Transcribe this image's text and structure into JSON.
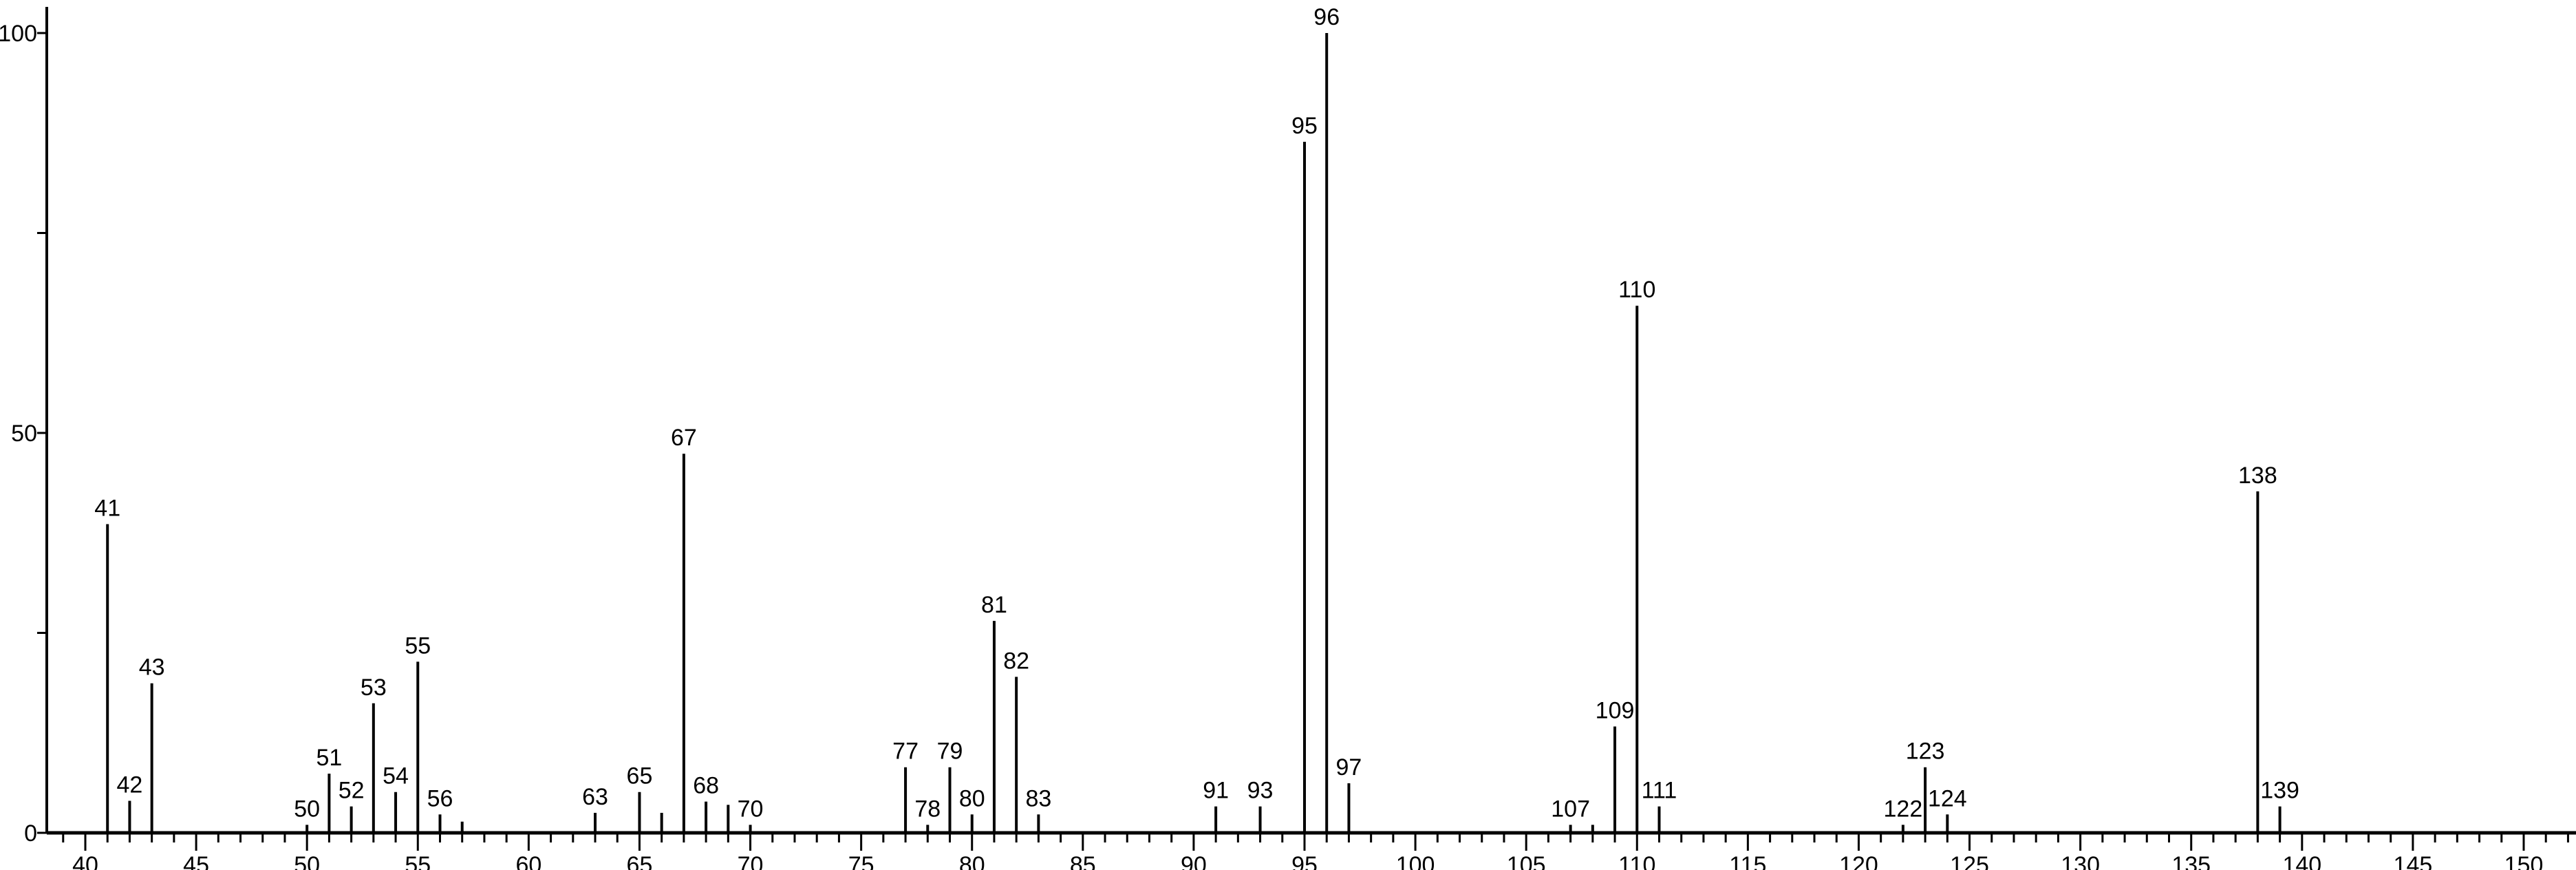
{
  "chart_data": {
    "type": "bar",
    "title": "",
    "xlabel": "",
    "ylabel": "",
    "xlim": [
      38.3,
      152
    ],
    "ylim": [
      0,
      100
    ],
    "x_ticks": [
      40,
      45,
      50,
      55,
      60,
      65,
      70,
      75,
      80,
      85,
      90,
      95,
      100,
      105,
      110,
      115,
      120,
      125,
      130,
      135,
      140,
      145,
      150
    ],
    "y_ticks": [
      0,
      25,
      50,
      75,
      100
    ],
    "y_tick_labels": [
      "0",
      "",
      "50",
      "",
      "100"
    ],
    "grid": false,
    "color": "#000000",
    "peaks": [
      {
        "mz": 41,
        "intensity": 38.6,
        "label": "41"
      },
      {
        "mz": 42,
        "intensity": 4.0,
        "label": "42"
      },
      {
        "mz": 43,
        "intensity": 18.7,
        "label": "43"
      },
      {
        "mz": 50,
        "intensity": 1.0,
        "label": "50"
      },
      {
        "mz": 51,
        "intensity": 7.4,
        "label": "51"
      },
      {
        "mz": 52,
        "intensity": 3.3,
        "label": "52"
      },
      {
        "mz": 53,
        "intensity": 16.2,
        "label": "53"
      },
      {
        "mz": 54,
        "intensity": 5.1,
        "label": "54"
      },
      {
        "mz": 55,
        "intensity": 21.4,
        "label": "55"
      },
      {
        "mz": 56,
        "intensity": 2.3,
        "label": "56"
      },
      {
        "mz": 57,
        "intensity": 1.4,
        "label": ""
      },
      {
        "mz": 63,
        "intensity": 2.5,
        "label": "63"
      },
      {
        "mz": 65,
        "intensity": 5.1,
        "label": "65"
      },
      {
        "mz": 66,
        "intensity": 2.5,
        "label": ""
      },
      {
        "mz": 67,
        "intensity": 47.4,
        "label": "67"
      },
      {
        "mz": 68,
        "intensity": 3.9,
        "label": "68"
      },
      {
        "mz": 69,
        "intensity": 3.5,
        "label": ""
      },
      {
        "mz": 70,
        "intensity": 1.0,
        "label": "70"
      },
      {
        "mz": 77,
        "intensity": 8.2,
        "label": "77"
      },
      {
        "mz": 78,
        "intensity": 1.0,
        "label": "78"
      },
      {
        "mz": 79,
        "intensity": 8.2,
        "label": "79"
      },
      {
        "mz": 80,
        "intensity": 2.3,
        "label": "80"
      },
      {
        "mz": 81,
        "intensity": 26.5,
        "label": "81"
      },
      {
        "mz": 82,
        "intensity": 19.5,
        "label": "82"
      },
      {
        "mz": 83,
        "intensity": 2.3,
        "label": "83"
      },
      {
        "mz": 91,
        "intensity": 3.3,
        "label": "91"
      },
      {
        "mz": 93,
        "intensity": 3.3,
        "label": "93"
      },
      {
        "mz": 95,
        "intensity": 86.4,
        "label": "95"
      },
      {
        "mz": 96,
        "intensity": 100,
        "label": "96"
      },
      {
        "mz": 97,
        "intensity": 6.2,
        "label": "97"
      },
      {
        "mz": 107,
        "intensity": 1.0,
        "label": "107"
      },
      {
        "mz": 108,
        "intensity": 1.0,
        "label": ""
      },
      {
        "mz": 109,
        "intensity": 13.3,
        "label": "109"
      },
      {
        "mz": 110,
        "intensity": 65.9,
        "label": "110"
      },
      {
        "mz": 111,
        "intensity": 3.3,
        "label": "111"
      },
      {
        "mz": 122,
        "intensity": 1.0,
        "label": "122"
      },
      {
        "mz": 123,
        "intensity": 8.2,
        "label": "123"
      },
      {
        "mz": 124,
        "intensity": 2.3,
        "label": "124"
      },
      {
        "mz": 138,
        "intensity": 42.7,
        "label": "138"
      },
      {
        "mz": 139,
        "intensity": 3.3,
        "label": "139"
      }
    ]
  }
}
